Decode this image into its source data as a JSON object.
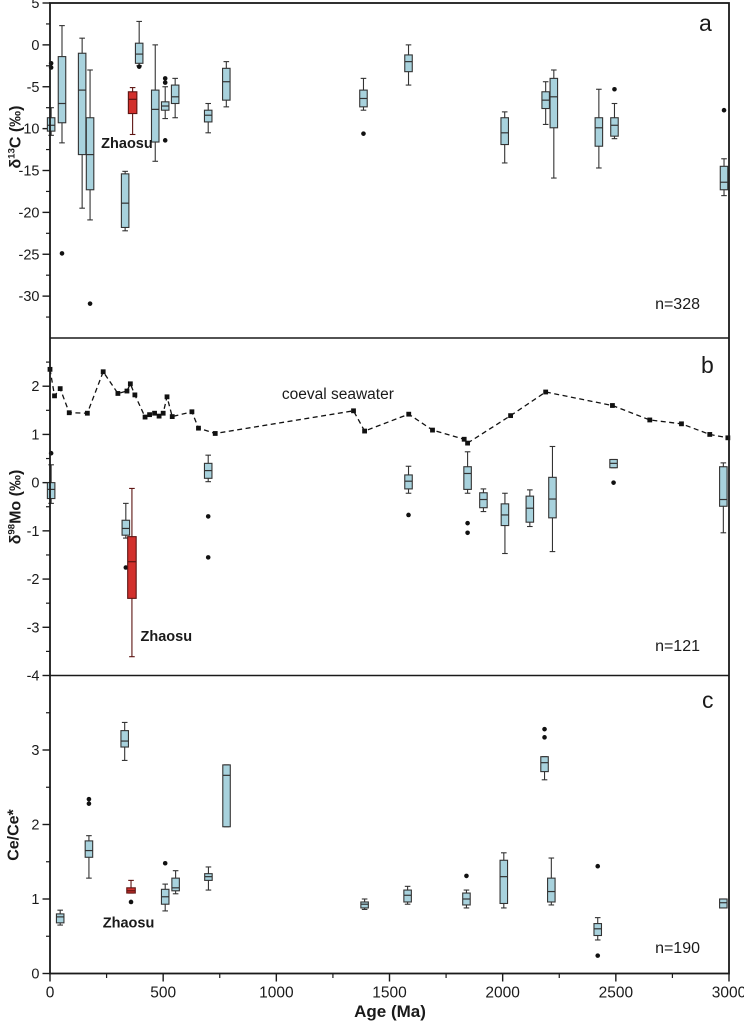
{
  "chart_data": {
    "type": "box",
    "colors": {
      "box_fill": "#a8d2dd",
      "box_stroke": "#333333",
      "red_fill": "#d2302c",
      "red_stroke": "#5d1412",
      "marker": "#111111"
    },
    "x_axis": {
      "label": "Age (Ma)",
      "min": 0,
      "max": 3000,
      "major_ticks": [
        0,
        500,
        1000,
        1500,
        2000,
        2500,
        3000
      ],
      "minor_step": 250
    },
    "panels": [
      {
        "id": "a",
        "letter": "a",
        "count_label": "n=328",
        "y_axis": {
          "title_delta": "δ",
          "title_sup": "13",
          "title_main": "C (‰)",
          "min": -35,
          "max": 5,
          "major_ticks": [
            5,
            0,
            -5,
            -10,
            -15,
            -20,
            -25,
            -30
          ],
          "minor_step": 2.5
        },
        "annotations": [
          {
            "text": "Zhaosu",
            "age": 340,
            "value": -12.3,
            "anchor": "middle"
          }
        ],
        "boxes": [
          {
            "age": 5,
            "lo": -10.8,
            "q1": -10.3,
            "med": -9.6,
            "q3": -8.7,
            "hi": -7.5,
            "outliers": [
              -2.2,
              -2.7
            ]
          },
          {
            "age": 53,
            "lo": -11.7,
            "q1": -9.3,
            "med": -7.0,
            "q3": -1.4,
            "hi": 2.3,
            "outliers": [
              -24.9
            ]
          },
          {
            "age": 142,
            "lo": -19.5,
            "q1": -13.1,
            "med": -5.4,
            "q3": -1.0,
            "hi": 0.8,
            "outliers": []
          },
          {
            "age": 177,
            "lo": -20.9,
            "q1": -17.3,
            "med": -13.1,
            "q3": -8.7,
            "hi": -3.0,
            "outliers": [
              -30.9
            ]
          },
          {
            "age": 332,
            "lo": -22.2,
            "q1": -21.8,
            "med": -18.9,
            "q3": -15.4,
            "hi": -15.1,
            "outliers": []
          },
          {
            "age": 365,
            "lo": -10.7,
            "q1": -8.2,
            "med": -6.5,
            "q3": -5.6,
            "hi": -5.1,
            "outliers": [],
            "red": true,
            "series": "Zhaosu"
          },
          {
            "age": 394,
            "lo": -2.5,
            "q1": -2.2,
            "med": -1.1,
            "q3": 0.2,
            "hi": 2.8,
            "outliers": [
              -2.6
            ]
          },
          {
            "age": 465,
            "lo": -13.9,
            "q1": -11.6,
            "med": -7.7,
            "q3": -5.4,
            "hi": 0.0,
            "outliers": []
          },
          {
            "age": 509,
            "lo": -8.8,
            "q1": -7.8,
            "med": -7.3,
            "q3": -6.8,
            "hi": -5.0,
            "outliers": [
              -4.0,
              -4.5,
              -11.4
            ]
          },
          {
            "age": 553,
            "lo": -8.7,
            "q1": -7.0,
            "med": -6.2,
            "q3": -4.8,
            "hi": -4.0,
            "outliers": []
          },
          {
            "age": 699,
            "lo": -10.5,
            "q1": -9.2,
            "med": -8.4,
            "q3": -7.8,
            "hi": -7.0,
            "outliers": []
          },
          {
            "age": 779,
            "lo": -7.4,
            "q1": -6.6,
            "med": -4.4,
            "q3": -2.8,
            "hi": -2.0,
            "outliers": []
          },
          {
            "age": 1385,
            "lo": -7.8,
            "q1": -7.4,
            "med": -6.4,
            "q3": -5.4,
            "hi": -4.0,
            "outliers": [
              -10.6
            ]
          },
          {
            "age": 1584,
            "lo": -4.8,
            "q1": -3.2,
            "med": -2.0,
            "q3": -1.2,
            "hi": 0.0,
            "outliers": []
          },
          {
            "age": 2009,
            "lo": -14.1,
            "q1": -11.9,
            "med": -10.5,
            "q3": -8.7,
            "hi": -8.0,
            "outliers": []
          },
          {
            "age": 2190,
            "lo": -9.5,
            "q1": -7.6,
            "med": -6.6,
            "q3": -5.6,
            "hi": -4.4,
            "outliers": []
          },
          {
            "age": 2226,
            "lo": -15.9,
            "q1": -9.9,
            "med": -6.2,
            "q3": -4.0,
            "hi": -3.0,
            "outliers": []
          },
          {
            "age": 2425,
            "lo": -14.7,
            "q1": -12.1,
            "med": -9.9,
            "q3": -8.7,
            "hi": -5.3,
            "outliers": []
          },
          {
            "age": 2494,
            "lo": -11.2,
            "q1": -10.9,
            "med": -9.6,
            "q3": -8.7,
            "hi": -7.0,
            "outliers": [
              -5.3
            ]
          },
          {
            "age": 2978,
            "lo": -18.0,
            "q1": -17.3,
            "med": -16.4,
            "q3": -14.5,
            "hi": -13.6,
            "outliers": [
              -7.8
            ]
          }
        ]
      },
      {
        "id": "b",
        "letter": "b",
        "count_label": "n=121",
        "y_axis": {
          "title_delta": "δ",
          "title_sup": "98",
          "title_main": "Mo (‰)",
          "min": -4,
          "max": 3,
          "major_ticks": [
            2,
            1,
            0,
            -1,
            -2,
            -3,
            -4
          ],
          "minor_step": 0.5
        },
        "annotations": [
          {
            "text": "Zhaosu",
            "age": 400,
            "value": -3.28,
            "anchor": "start"
          }
        ],
        "seawater": {
          "label": "coeval seawater",
          "label_age": 1272,
          "label_value": 1.74,
          "points": [
            [
              0,
              2.35
            ],
            [
              20,
              1.8
            ],
            [
              45,
              1.95
            ],
            [
              85,
              1.45
            ],
            [
              165,
              1.44
            ],
            [
              235,
              2.3
            ],
            [
              300,
              1.85
            ],
            [
              340,
              1.9
            ],
            [
              355,
              2.05
            ],
            [
              375,
              1.82
            ],
            [
              420,
              1.36
            ],
            [
              440,
              1.41
            ],
            [
              462,
              1.44
            ],
            [
              482,
              1.38
            ],
            [
              500,
              1.44
            ],
            [
              517,
              1.78
            ],
            [
              540,
              1.37
            ],
            [
              627,
              1.47
            ],
            [
              656,
              1.13
            ],
            [
              730,
              1.02
            ],
            [
              1341,
              1.49
            ],
            [
              1390,
              1.07
            ],
            [
              1585,
              1.42
            ],
            [
              1690,
              1.09
            ],
            [
              1830,
              0.9
            ],
            [
              1845,
              0.82
            ],
            [
              2035,
              1.39
            ],
            [
              2190,
              1.88
            ],
            [
              2485,
              1.6
            ],
            [
              2650,
              1.3
            ],
            [
              2790,
              1.22
            ],
            [
              2915,
              1.0
            ],
            [
              2995,
              0.93
            ]
          ]
        },
        "boxes": [
          {
            "age": 5,
            "lo": -0.43,
            "q1": -0.33,
            "med": -0.14,
            "q3": 0.0,
            "hi": 0.37,
            "outliers": [
              0.61
            ]
          },
          {
            "age": 335,
            "lo": -1.15,
            "q1": -1.09,
            "med": -0.95,
            "q3": -0.78,
            "hi": -0.43,
            "outliers": [
              -1.76
            ]
          },
          {
            "age": 362,
            "lo": -3.61,
            "q1": -2.4,
            "med": -1.64,
            "q3": -1.12,
            "hi": -0.12,
            "outliers": [],
            "red": true,
            "series": "Zhaosu"
          },
          {
            "age": 699,
            "lo": 0.02,
            "q1": 0.09,
            "med": 0.25,
            "q3": 0.4,
            "hi": 0.57,
            "outliers": [
              -0.7,
              -1.55
            ]
          },
          {
            "age": 1584,
            "lo": -0.22,
            "q1": -0.13,
            "med": 0.03,
            "q3": 0.16,
            "hi": 0.34,
            "outliers": [
              -0.67
            ]
          },
          {
            "age": 1845,
            "lo": -0.22,
            "q1": -0.14,
            "med": 0.19,
            "q3": 0.33,
            "hi": 0.64,
            "outliers": [
              -0.84,
              -1.04
            ]
          },
          {
            "age": 1915,
            "lo": -0.6,
            "q1": -0.52,
            "med": -0.35,
            "q3": -0.21,
            "hi": -0.13,
            "outliers": []
          },
          {
            "age": 2010,
            "lo": -1.47,
            "q1": -0.89,
            "med": -0.67,
            "q3": -0.44,
            "hi": -0.22,
            "outliers": []
          },
          {
            "age": 2120,
            "lo": -0.91,
            "q1": -0.82,
            "med": -0.53,
            "q3": -0.28,
            "hi": -0.15,
            "outliers": []
          },
          {
            "age": 2220,
            "lo": -1.43,
            "q1": -0.73,
            "med": -0.34,
            "q3": 0.11,
            "hi": 0.75,
            "outliers": []
          },
          {
            "age": 2490,
            "lo": 0.31,
            "q1": 0.31,
            "med": 0.4,
            "q3": 0.48,
            "hi": 0.48,
            "outliers": [
              0.0
            ]
          },
          {
            "age": 2975,
            "lo": -1.04,
            "q1": -0.49,
            "med": -0.35,
            "q3": 0.33,
            "hi": 0.41,
            "outliers": []
          }
        ]
      },
      {
        "id": "c",
        "letter": "c",
        "count_label": "n=190",
        "y_axis": {
          "title_delta": "",
          "title_sup": "",
          "title_main": "Ce/Ce*",
          "min": 0,
          "max": 4,
          "major_ticks": [
            3,
            2,
            1,
            0
          ],
          "minor_step": 0.5
        },
        "annotations": [
          {
            "text": "Zhaosu",
            "age": 347,
            "value": 0.62,
            "anchor": "middle"
          }
        ],
        "boxes": [
          {
            "age": 45,
            "lo": 0.65,
            "q1": 0.68,
            "med": 0.76,
            "q3": 0.8,
            "hi": 0.85,
            "outliers": []
          },
          {
            "age": 172,
            "lo": 1.28,
            "q1": 1.56,
            "med": 1.65,
            "q3": 1.78,
            "hi": 1.85,
            "outliers": [
              2.34,
              2.28
            ]
          },
          {
            "age": 330,
            "lo": 2.86,
            "q1": 3.04,
            "med": 3.12,
            "q3": 3.26,
            "hi": 3.37,
            "outliers": []
          },
          {
            "age": 358,
            "lo": 1.08,
            "q1": 1.08,
            "med": 1.11,
            "q3": 1.15,
            "hi": 1.25,
            "outliers": [
              0.96
            ],
            "red": true,
            "series": "Zhaosu"
          },
          {
            "age": 509,
            "lo": 0.84,
            "q1": 0.93,
            "med": 1.03,
            "q3": 1.13,
            "hi": 1.2,
            "outliers": [
              1.48
            ]
          },
          {
            "age": 555,
            "lo": 1.07,
            "q1": 1.11,
            "med": 1.15,
            "q3": 1.28,
            "hi": 1.38,
            "outliers": []
          },
          {
            "age": 700,
            "lo": 1.12,
            "q1": 1.25,
            "med": 1.3,
            "q3": 1.34,
            "hi": 1.43,
            "outliers": []
          },
          {
            "age": 780,
            "lo": 1.97,
            "q1": 1.97,
            "med": 2.66,
            "q3": 2.8,
            "hi": 2.8,
            "outliers": []
          },
          {
            "age": 1390,
            "lo": 0.86,
            "q1": 0.88,
            "med": 0.93,
            "q3": 0.96,
            "hi": 1.0,
            "outliers": []
          },
          {
            "age": 1580,
            "lo": 0.93,
            "q1": 0.96,
            "med": 1.05,
            "q3": 1.12,
            "hi": 1.17,
            "outliers": []
          },
          {
            "age": 1840,
            "lo": 0.88,
            "q1": 0.92,
            "med": 1.0,
            "q3": 1.08,
            "hi": 1.12,
            "outliers": [
              1.31
            ]
          },
          {
            "age": 2005,
            "lo": 0.88,
            "q1": 0.94,
            "med": 1.3,
            "q3": 1.52,
            "hi": 1.62,
            "outliers": []
          },
          {
            "age": 2185,
            "lo": 2.6,
            "q1": 2.71,
            "med": 2.83,
            "q3": 2.91,
            "hi": 2.91,
            "outliers": [
              3.28,
              3.17
            ]
          },
          {
            "age": 2215,
            "lo": 0.92,
            "q1": 0.96,
            "med": 1.1,
            "q3": 1.28,
            "hi": 1.55,
            "outliers": []
          },
          {
            "age": 2420,
            "lo": 0.45,
            "q1": 0.51,
            "med": 0.6,
            "q3": 0.67,
            "hi": 0.75,
            "outliers": [
              1.44,
              0.24
            ]
          },
          {
            "age": 2975,
            "lo": 0.88,
            "q1": 0.88,
            "med": 0.95,
            "q3": 1.0,
            "hi": 1.0,
            "outliers": []
          }
        ]
      }
    ]
  }
}
